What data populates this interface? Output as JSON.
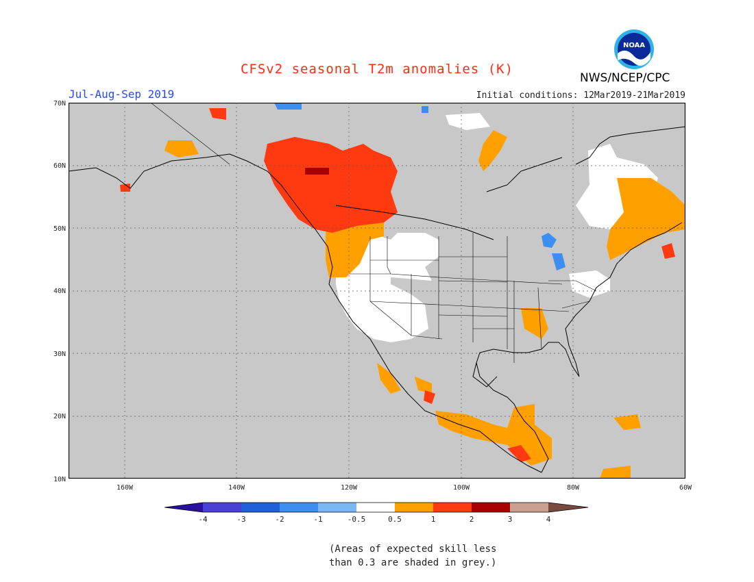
{
  "header": {
    "title": "CFSv2 seasonal T2m anomalies (K)",
    "period": "Jul-Aug-Sep 2019",
    "initial_conditions": "Initial conditions: 12Mar2019-21Mar2019",
    "org": "NWS/NCEP/CPC",
    "logo_text": "NOAA"
  },
  "map": {
    "lat_labels": [
      "70N",
      "60N",
      "50N",
      "40N",
      "30N",
      "20N",
      "10N"
    ],
    "lon_labels": [
      "160W",
      "140W",
      "120W",
      "100W",
      "80W",
      "60W"
    ]
  },
  "colorbar": {
    "labels": [
      "-4",
      "-3",
      "-2",
      "-1",
      "-0.5",
      "0.5",
      "1",
      "2",
      "3",
      "4"
    ],
    "colors": [
      "#2b0fa0",
      "#4a3fd6",
      "#2060d8",
      "#3c8ef0",
      "#7ab8f5",
      "#ffffff",
      "#ffa000",
      "#ff3a10",
      "#a80000",
      "#c9a090",
      "#7a4a40"
    ]
  },
  "note": {
    "line1": "(Areas of expected skill less",
    "line2": "than 0.3 are shaded in grey.)"
  },
  "colors": {
    "skill_grey": "#c8c8c8",
    "warm1": "#ffa000",
    "warm2": "#ff3a10",
    "warm3": "#a80000",
    "cool1": "#3c8ef0",
    "cool2": "#2060d8"
  }
}
